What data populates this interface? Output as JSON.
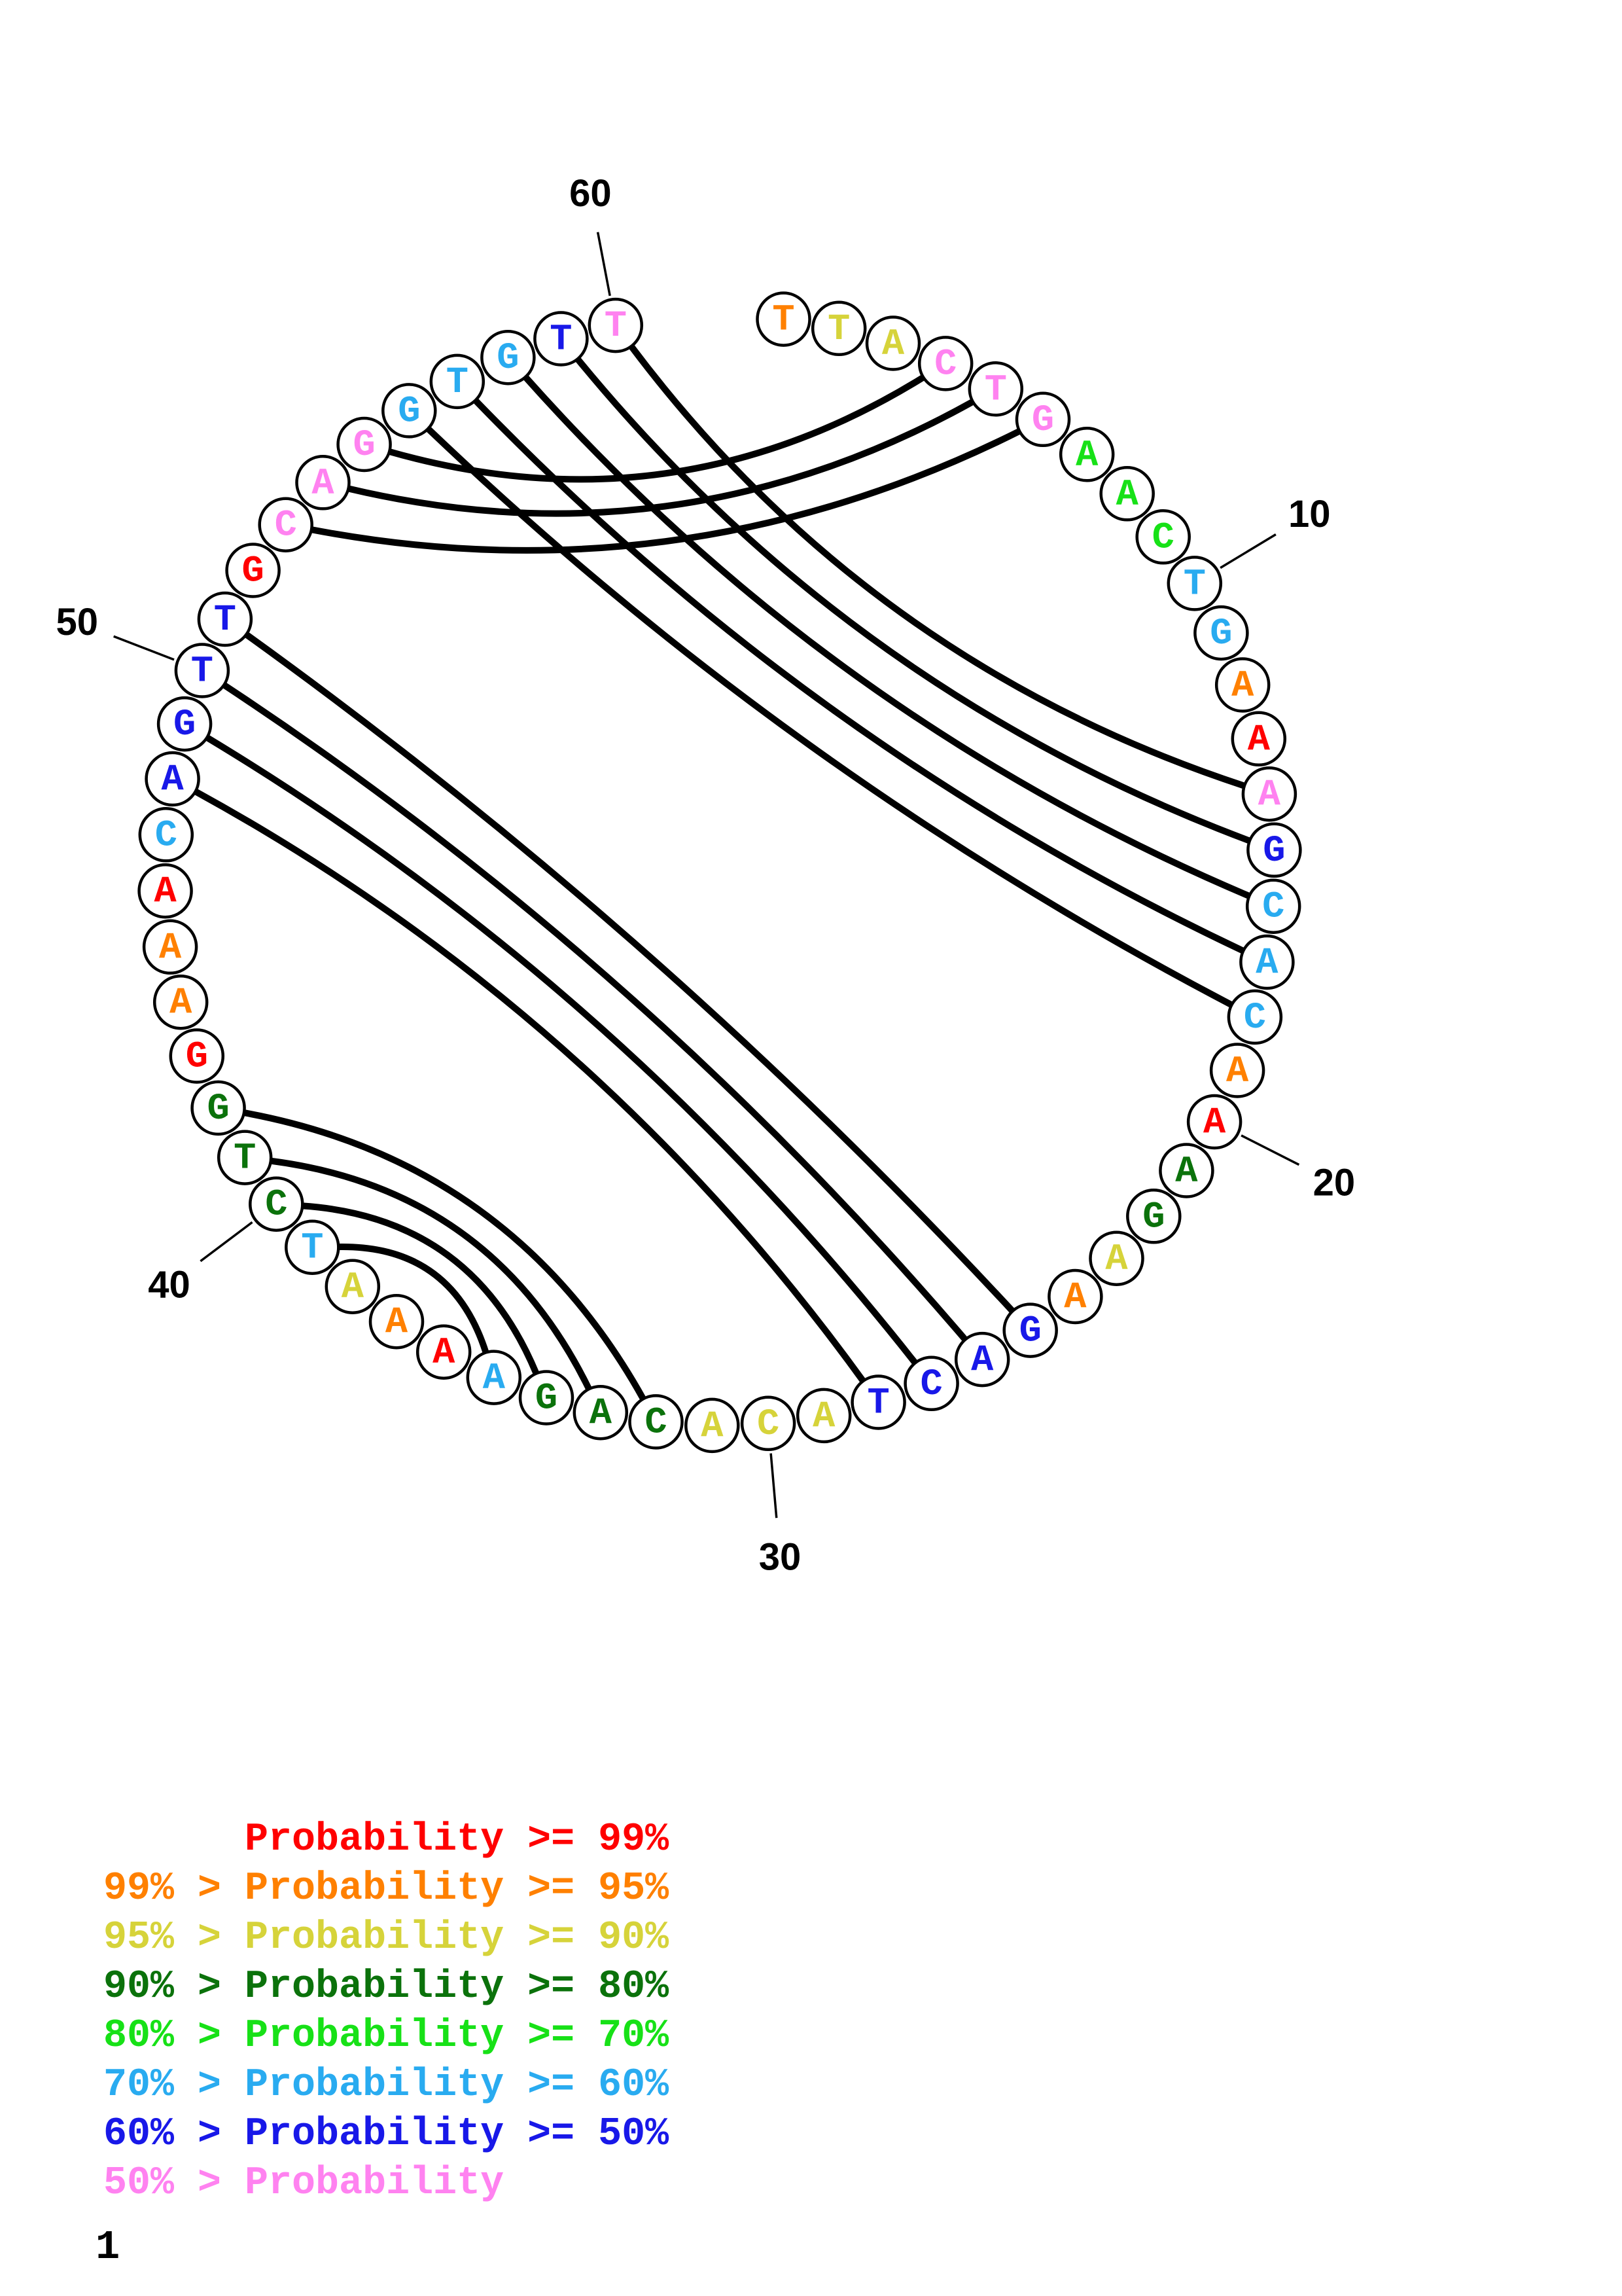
{
  "page_number": "1",
  "chart_data": {
    "type": "chord",
    "title": "",
    "layout_hint": "circular sequence plot, position 1 at top going clockwise, gap between position 60 and 1 at top",
    "sequence": [
      {
        "pos": 1,
        "base": "T",
        "prob_class": "95-99"
      },
      {
        "pos": 2,
        "base": "T",
        "prob_class": "90-95"
      },
      {
        "pos": 3,
        "base": "A",
        "prob_class": "90-95"
      },
      {
        "pos": 4,
        "base": "C",
        "prob_class": "<50"
      },
      {
        "pos": 5,
        "base": "T",
        "prob_class": "<50"
      },
      {
        "pos": 6,
        "base": "G",
        "prob_class": "<50"
      },
      {
        "pos": 7,
        "base": "A",
        "prob_class": "70-80"
      },
      {
        "pos": 8,
        "base": "A",
        "prob_class": "70-80"
      },
      {
        "pos": 9,
        "base": "C",
        "prob_class": "70-80"
      },
      {
        "pos": 10,
        "base": "T",
        "prob_class": "60-70"
      },
      {
        "pos": 11,
        "base": "G",
        "prob_class": "60-70"
      },
      {
        "pos": 12,
        "base": "A",
        "prob_class": "95-99"
      },
      {
        "pos": 13,
        "base": "A",
        "prob_class": ">=99"
      },
      {
        "pos": 14,
        "base": "A",
        "prob_class": "<50"
      },
      {
        "pos": 15,
        "base": "G",
        "prob_class": "50-60"
      },
      {
        "pos": 16,
        "base": "C",
        "prob_class": "60-70"
      },
      {
        "pos": 17,
        "base": "A",
        "prob_class": "60-70"
      },
      {
        "pos": 18,
        "base": "C",
        "prob_class": "60-70"
      },
      {
        "pos": 19,
        "base": "A",
        "prob_class": "95-99"
      },
      {
        "pos": 20,
        "base": "A",
        "prob_class": ">=99"
      },
      {
        "pos": 21,
        "base": "A",
        "prob_class": "80-90"
      },
      {
        "pos": 22,
        "base": "G",
        "prob_class": "80-90"
      },
      {
        "pos": 23,
        "base": "A",
        "prob_class": "90-95"
      },
      {
        "pos": 24,
        "base": "A",
        "prob_class": "95-99"
      },
      {
        "pos": 25,
        "base": "G",
        "prob_class": "50-60"
      },
      {
        "pos": 26,
        "base": "A",
        "prob_class": "50-60"
      },
      {
        "pos": 27,
        "base": "C",
        "prob_class": "50-60"
      },
      {
        "pos": 28,
        "base": "T",
        "prob_class": "50-60"
      },
      {
        "pos": 29,
        "base": "A",
        "prob_class": "90-95"
      },
      {
        "pos": 30,
        "base": "C",
        "prob_class": "90-95"
      },
      {
        "pos": 31,
        "base": "A",
        "prob_class": "90-95"
      },
      {
        "pos": 32,
        "base": "C",
        "prob_class": "80-90"
      },
      {
        "pos": 33,
        "base": "A",
        "prob_class": "80-90"
      },
      {
        "pos": 34,
        "base": "G",
        "prob_class": "80-90"
      },
      {
        "pos": 35,
        "base": "A",
        "prob_class": "60-70"
      },
      {
        "pos": 36,
        "base": "A",
        "prob_class": ">=99"
      },
      {
        "pos": 37,
        "base": "A",
        "prob_class": "95-99"
      },
      {
        "pos": 38,
        "base": "A",
        "prob_class": "90-95"
      },
      {
        "pos": 39,
        "base": "T",
        "prob_class": "60-70"
      },
      {
        "pos": 40,
        "base": "C",
        "prob_class": "80-90"
      },
      {
        "pos": 41,
        "base": "T",
        "prob_class": "80-90"
      },
      {
        "pos": 42,
        "base": "G",
        "prob_class": "80-90"
      },
      {
        "pos": 43,
        "base": "G",
        "prob_class": ">=99"
      },
      {
        "pos": 44,
        "base": "A",
        "prob_class": "95-99"
      },
      {
        "pos": 45,
        "base": "A",
        "prob_class": "95-99"
      },
      {
        "pos": 46,
        "base": "A",
        "prob_class": ">=99"
      },
      {
        "pos": 47,
        "base": "C",
        "prob_class": "60-70"
      },
      {
        "pos": 48,
        "base": "A",
        "prob_class": "50-60"
      },
      {
        "pos": 49,
        "base": "G",
        "prob_class": "50-60"
      },
      {
        "pos": 50,
        "base": "T",
        "prob_class": "50-60"
      },
      {
        "pos": 51,
        "base": "T",
        "prob_class": "50-60"
      },
      {
        "pos": 52,
        "base": "G",
        "prob_class": ">=99"
      },
      {
        "pos": 53,
        "base": "C",
        "prob_class": "<50"
      },
      {
        "pos": 54,
        "base": "A",
        "prob_class": "<50"
      },
      {
        "pos": 55,
        "base": "G",
        "prob_class": "<50"
      },
      {
        "pos": 56,
        "base": "G",
        "prob_class": "60-70"
      },
      {
        "pos": 57,
        "base": "T",
        "prob_class": "60-70"
      },
      {
        "pos": 58,
        "base": "G",
        "prob_class": "60-70"
      },
      {
        "pos": 59,
        "base": "T",
        "prob_class": "50-60"
      },
      {
        "pos": 60,
        "base": "T",
        "prob_class": "<50"
      }
    ],
    "pairs": [
      [
        4,
        55
      ],
      [
        5,
        54
      ],
      [
        6,
        53
      ],
      [
        14,
        60
      ],
      [
        15,
        59
      ],
      [
        16,
        58
      ],
      [
        17,
        57
      ],
      [
        18,
        56
      ],
      [
        25,
        51
      ],
      [
        26,
        50
      ],
      [
        27,
        49
      ],
      [
        28,
        48
      ],
      [
        32,
        42
      ],
      [
        33,
        41
      ],
      [
        34,
        40
      ],
      [
        35,
        39
      ]
    ],
    "position_labels": [
      {
        "pos": 10,
        "text": "10"
      },
      {
        "pos": 20,
        "text": "20"
      },
      {
        "pos": 30,
        "text": "30"
      },
      {
        "pos": 40,
        "text": "40"
      },
      {
        "pos": 50,
        "text": "50"
      },
      {
        "pos": 60,
        "text": "60"
      }
    ],
    "legend": [
      {
        "text": "      Probability >= 99%",
        "prob_class": ">=99"
      },
      {
        "text": "99% > Probability >= 95%",
        "prob_class": "95-99"
      },
      {
        "text": "95% > Probability >= 90%",
        "prob_class": "90-95"
      },
      {
        "text": "90% > Probability >= 80%",
        "prob_class": "80-90"
      },
      {
        "text": "80% > Probability >= 70%",
        "prob_class": "70-80"
      },
      {
        "text": "70% > Probability >= 60%",
        "prob_class": "60-70"
      },
      {
        "text": "60% > Probability >= 50%",
        "prob_class": "50-60"
      },
      {
        "text": "50% > Probability",
        "prob_class": "<50"
      }
    ],
    "prob_class_colors": {
      ">=99": "#FF0000",
      "95-99": "#FF8000",
      "90-95": "#D6D33A",
      "80-90": "#0B720B",
      "70-80": "#17E117",
      "60-70": "#29ABF0",
      "50-60": "#1818E8",
      "<50": "#FF82F0"
    }
  }
}
